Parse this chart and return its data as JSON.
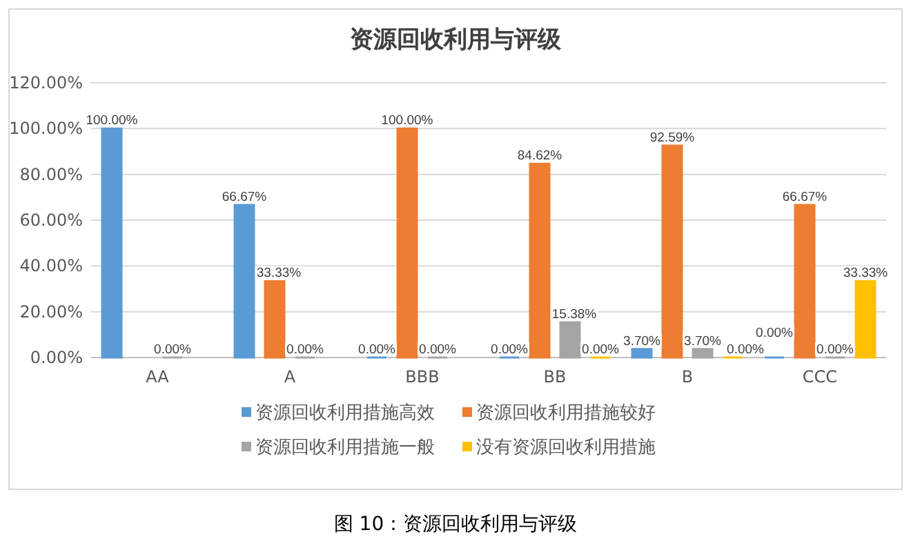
{
  "chart_data": {
    "type": "bar",
    "title": "资源回收利用与评级",
    "categories": [
      "AA",
      "A",
      "BBB",
      "BB",
      "B",
      "CCC"
    ],
    "series": [
      {
        "name": "资源回收利用措施高效",
        "color": "#5b9bd5",
        "values": [
          100,
          66.67,
          0,
          0,
          3.7,
          0
        ],
        "value_labels": [
          "100.00%",
          "66.67%",
          "0.00%",
          "0.00%",
          "3.70%",
          "0.00%"
        ]
      },
      {
        "name": "资源回收利用措施较好",
        "color": "#ed7d31",
        "values": [
          null,
          33.33,
          100,
          84.62,
          92.59,
          66.67
        ],
        "value_labels": [
          null,
          "33.33%",
          "100.00%",
          "84.62%",
          "92.59%",
          "66.67%"
        ]
      },
      {
        "name": "资源回收利用措施一般",
        "color": "#a5a5a5",
        "values": [
          0,
          0,
          0,
          15.38,
          3.7,
          0
        ],
        "value_labels": [
          "0.00%",
          "0.00%",
          "0.00%",
          "15.38%",
          "3.70%",
          "0.00%"
        ]
      },
      {
        "name": "没有资源回收利用措施",
        "color": "#ffc000",
        "values": [
          null,
          null,
          null,
          0,
          0,
          33.33
        ],
        "value_labels": [
          null,
          null,
          null,
          "0.00%",
          "0.00%",
          "33.33%"
        ]
      }
    ],
    "ylim": [
      0,
      120
    ],
    "yticks": [
      {
        "value": 0,
        "label": "0.00%"
      },
      {
        "value": 20,
        "label": "20.00%"
      },
      {
        "value": 40,
        "label": "40.00%"
      },
      {
        "value": 60,
        "label": "60.00%"
      },
      {
        "value": 80,
        "label": "80.00%"
      },
      {
        "value": 100,
        "label": "100.00%"
      },
      {
        "value": 120,
        "label": "120.00%"
      }
    ],
    "grid": "y",
    "legend": "bottom",
    "annotations": [
      "图 10：资源回收利用与评级"
    ]
  }
}
